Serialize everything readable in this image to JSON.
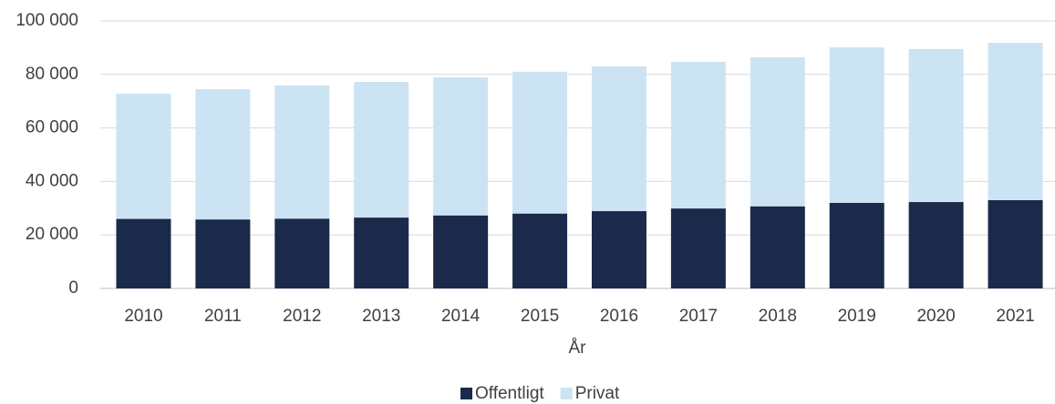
{
  "chart_data": {
    "type": "stacked_bar",
    "categories": [
      "2010",
      "2011",
      "2012",
      "2013",
      "2014",
      "2015",
      "2016",
      "2017",
      "2018",
      "2019",
      "2020",
      "2021"
    ],
    "series": [
      {
        "name": "Offentligt",
        "color": "#1b2a4a",
        "values": [
          26000,
          25800,
          26100,
          26500,
          27300,
          28000,
          28900,
          29900,
          30700,
          32000,
          32300,
          33000
        ]
      },
      {
        "name": "Privat",
        "color": "#cce3f4",
        "values": [
          46800,
          48700,
          49800,
          50700,
          51600,
          53000,
          54100,
          54800,
          55700,
          58100,
          57200,
          58800
        ]
      }
    ],
    "xlabel": "År",
    "ylim": [
      0,
      100000
    ],
    "yticks": [
      0,
      {
        "value": 20000,
        "label": "20 000"
      },
      {
        "value": 40000,
        "label": "40 000"
      },
      {
        "value": 60000,
        "label": "60 000"
      },
      {
        "value": 80000,
        "label": "80 000"
      },
      {
        "value": 100000,
        "label": "100 000"
      }
    ],
    "grid": true,
    "legend": "bottom"
  }
}
